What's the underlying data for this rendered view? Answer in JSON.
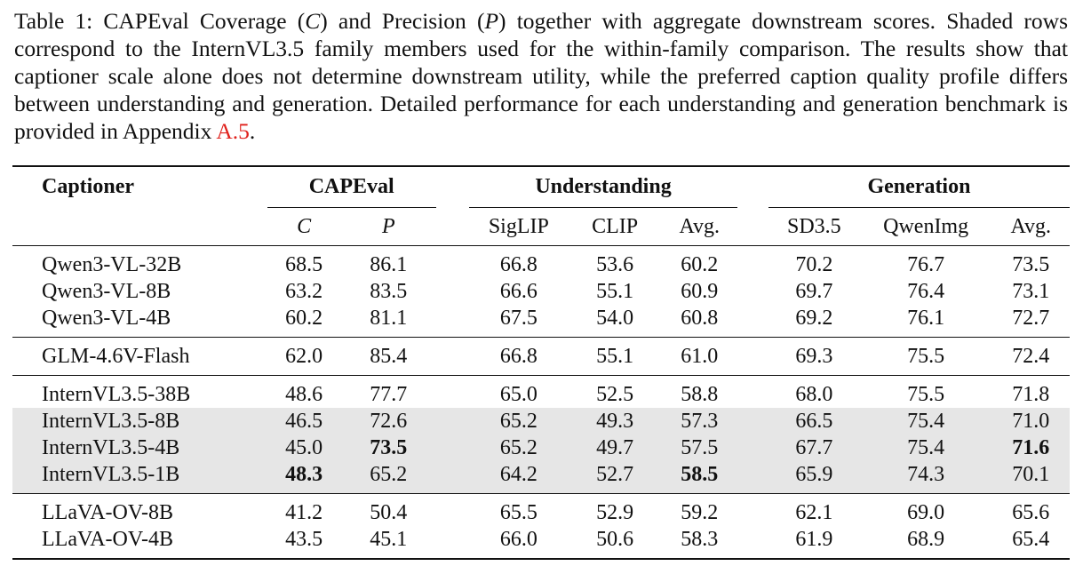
{
  "caption": {
    "prefix": "Table 1: CAPEval Coverage (",
    "c": "C",
    "mid1": ") and Precision (",
    "p": "P",
    "mid2": ") together with aggregate downstream scores. Shaded rows correspond to the InternVL3.5 family members used for the within-family comparison. The results show that captioner scale alone does not determine downstream utility, while the preferred caption quality profile differs between understanding and generation. Detailed performance for each understanding and generation benchmark is provided in Appendix ",
    "ref": "A.5",
    "suffix": "."
  },
  "table": {
    "header": {
      "captioner": "Captioner",
      "capeval": "CAPEval",
      "understanding": "Understanding",
      "generation": "Generation"
    },
    "subheader": [
      "C",
      "P",
      "SigLIP",
      "CLIP",
      "Avg.",
      "SD3.5",
      "QwenImg",
      "Avg."
    ],
    "groups": [
      {
        "rows": [
          {
            "name": "Qwen3-VL-32B",
            "values": [
              "68.5",
              "86.1",
              "66.8",
              "53.6",
              "60.2",
              "70.2",
              "76.7",
              "73.5"
            ],
            "shaded": false,
            "bold": []
          },
          {
            "name": "Qwen3-VL-8B",
            "values": [
              "63.2",
              "83.5",
              "66.6",
              "55.1",
              "60.9",
              "69.7",
              "76.4",
              "73.1"
            ],
            "shaded": false,
            "bold": []
          },
          {
            "name": "Qwen3-VL-4B",
            "values": [
              "60.2",
              "81.1",
              "67.5",
              "54.0",
              "60.8",
              "69.2",
              "76.1",
              "72.7"
            ],
            "shaded": false,
            "bold": []
          }
        ]
      },
      {
        "rows": [
          {
            "name": "GLM-4.6V-Flash",
            "values": [
              "62.0",
              "85.4",
              "66.8",
              "55.1",
              "61.0",
              "69.3",
              "75.5",
              "72.4"
            ],
            "shaded": false,
            "bold": []
          }
        ]
      },
      {
        "rows": [
          {
            "name": "InternVL3.5-38B",
            "values": [
              "48.6",
              "77.7",
              "65.0",
              "52.5",
              "58.8",
              "68.0",
              "75.5",
              "71.8"
            ],
            "shaded": false,
            "bold": []
          },
          {
            "name": "InternVL3.5-8B",
            "values": [
              "46.5",
              "72.6",
              "65.2",
              "49.3",
              "57.3",
              "66.5",
              "75.4",
              "71.0"
            ],
            "shaded": true,
            "bold": []
          },
          {
            "name": "InternVL3.5-4B",
            "values": [
              "45.0",
              "73.5",
              "65.2",
              "49.7",
              "57.5",
              "67.7",
              "75.4",
              "71.6"
            ],
            "shaded": true,
            "bold": [
              1,
              7
            ]
          },
          {
            "name": "InternVL3.5-1B",
            "values": [
              "48.3",
              "65.2",
              "64.2",
              "52.7",
              "58.5",
              "65.9",
              "74.3",
              "70.1"
            ],
            "shaded": true,
            "bold": [
              0,
              4
            ]
          }
        ]
      },
      {
        "rows": [
          {
            "name": "LLaVA-OV-8B",
            "values": [
              "41.2",
              "50.4",
              "65.5",
              "52.9",
              "59.2",
              "62.1",
              "69.0",
              "65.6"
            ],
            "shaded": false,
            "bold": []
          },
          {
            "name": "LLaVA-OV-4B",
            "values": [
              "43.5",
              "45.1",
              "66.0",
              "50.6",
              "58.3",
              "61.9",
              "68.9",
              "65.4"
            ],
            "shaded": false,
            "bold": []
          }
        ]
      }
    ]
  }
}
